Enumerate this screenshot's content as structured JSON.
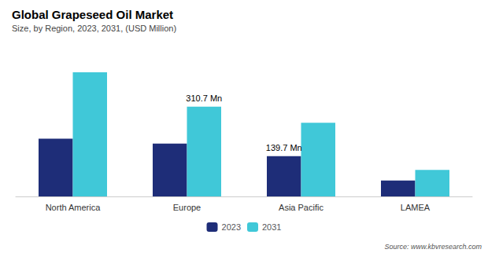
{
  "chart_data": {
    "type": "bar",
    "title": "Global Grapeseed Oil Market",
    "subtitle": "Size, by Region, 2023, 2031, (USD Million)",
    "source": "Source: www.kbvresearch.com",
    "categories": [
      "North America",
      "Europe",
      "Asia Pacific",
      "LAMEA"
    ],
    "series": [
      {
        "name": "2023",
        "color": "#1e2d78",
        "values": [
          200,
          183,
          139.7,
          55
        ]
      },
      {
        "name": "2031",
        "color": "#40c8d8",
        "values": [
          430,
          310.7,
          255,
          92
        ]
      }
    ],
    "annotations": [
      {
        "text": "310.7 Mn",
        "category": "Europe",
        "series": "2031"
      },
      {
        "text": "139.7 Mn",
        "category": "Asia Pacific",
        "series": "2023"
      }
    ],
    "ylim": [
      0,
      490
    ],
    "grid": false,
    "legend": "bottom",
    "tick_labels": "x"
  }
}
